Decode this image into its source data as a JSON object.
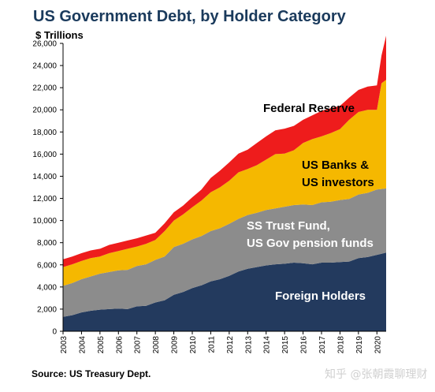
{
  "title": "US Government Debt, by Holder Category",
  "unit_label": "$ Trillions",
  "source": "Source: US Treasury Dept.",
  "watermark": "知乎 @张朝霞聊理财",
  "colors": {
    "foreign": "#233a5e",
    "trust": "#8c8c8c",
    "banks": "#f5b800",
    "fed": "#ee1c1c",
    "ann_dark": "#000000",
    "ann_light": "#ffffff"
  },
  "chart_data": {
    "type": "area",
    "stacked": true,
    "title": "US Government Debt, by Holder Category",
    "ylabel": "$ Trillions",
    "xlabel": "",
    "ylim": [
      0,
      26000
    ],
    "xlim": [
      2003,
      2020.5
    ],
    "grid": false,
    "y_ticks": [
      "0",
      "2,000",
      "4,000",
      "6,000",
      "8,000",
      "10,000",
      "12,000",
      "14,000",
      "16,000",
      "18,000",
      "20,000",
      "22,000",
      "24,000",
      "26,000"
    ],
    "x_ticks": [
      "2003",
      "2004",
      "2005",
      "2006",
      "2007",
      "2008",
      "2009",
      "2010",
      "2011",
      "2012",
      "2013",
      "2014",
      "2015",
      "2016",
      "2017",
      "2018",
      "2019",
      "2020"
    ],
    "x": [
      2003,
      2003.5,
      2004,
      2004.5,
      2005,
      2005.5,
      2006,
      2006.5,
      2007,
      2007.5,
      2008,
      2008.5,
      2009,
      2009.5,
      2010,
      2010.5,
      2011,
      2011.5,
      2012,
      2012.5,
      2013,
      2013.5,
      2014,
      2014.5,
      2015,
      2015.5,
      2016,
      2016.5,
      2017,
      2017.5,
      2018,
      2018.5,
      2019,
      2019.5,
      2020,
      2020.25,
      2020.5
    ],
    "series": [
      {
        "name": "Foreign Holders",
        "values": [
          1300,
          1450,
          1700,
          1850,
          1950,
          2000,
          2050,
          2000,
          2250,
          2300,
          2600,
          2800,
          3300,
          3550,
          3900,
          4150,
          4500,
          4700,
          5000,
          5400,
          5650,
          5800,
          5950,
          6050,
          6100,
          6200,
          6150,
          6050,
          6200,
          6200,
          6250,
          6300,
          6600,
          6700,
          6900,
          7000,
          7100
        ]
      },
      {
        "name": "SS Trust Fund, US Gov pension funds",
        "values": [
          2800,
          2900,
          3000,
          3100,
          3250,
          3350,
          3450,
          3550,
          3650,
          3750,
          3850,
          3950,
          4300,
          4350,
          4400,
          4450,
          4550,
          4600,
          4700,
          4750,
          4850,
          4900,
          5000,
          5050,
          5150,
          5200,
          5300,
          5350,
          5450,
          5500,
          5600,
          5650,
          5750,
          5800,
          5900,
          5850,
          5800
        ]
      },
      {
        "name": "US Banks & US investors",
        "values": [
          1700,
          1700,
          1650,
          1650,
          1550,
          1700,
          1750,
          1900,
          1750,
          1850,
          1800,
          2300,
          2400,
          2650,
          2900,
          3200,
          3500,
          3700,
          3900,
          4200,
          4150,
          4300,
          4550,
          4900,
          4800,
          4950,
          5550,
          5950,
          5950,
          6200,
          6400,
          7150,
          7450,
          7500,
          7200,
          9550,
          9800
        ]
      },
      {
        "name": "Federal Reserve",
        "values": [
          700,
          700,
          700,
          700,
          700,
          750,
          750,
          750,
          750,
          750,
          650,
          700,
          750,
          800,
          900,
          1000,
          1300,
          1500,
          1650,
          1700,
          1750,
          2000,
          2100,
          2150,
          2250,
          2200,
          2100,
          2150,
          2300,
          2250,
          2100,
          2000,
          2000,
          2100,
          2200,
          2500,
          4000
        ]
      }
    ],
    "annotations": [
      {
        "text": "Federal Reserve",
        "series": "Federal Reserve"
      },
      {
        "text": "US Banks &",
        "series": "US Banks & US investors"
      },
      {
        "text": "US investors",
        "series": "US Banks & US investors"
      },
      {
        "text": "SS Trust Fund,",
        "series": "SS Trust Fund, US Gov pension funds"
      },
      {
        "text": "US Gov pension funds",
        "series": "SS Trust Fund, US Gov pension funds"
      },
      {
        "text": "Foreign Holders",
        "series": "Foreign Holders"
      }
    ]
  }
}
